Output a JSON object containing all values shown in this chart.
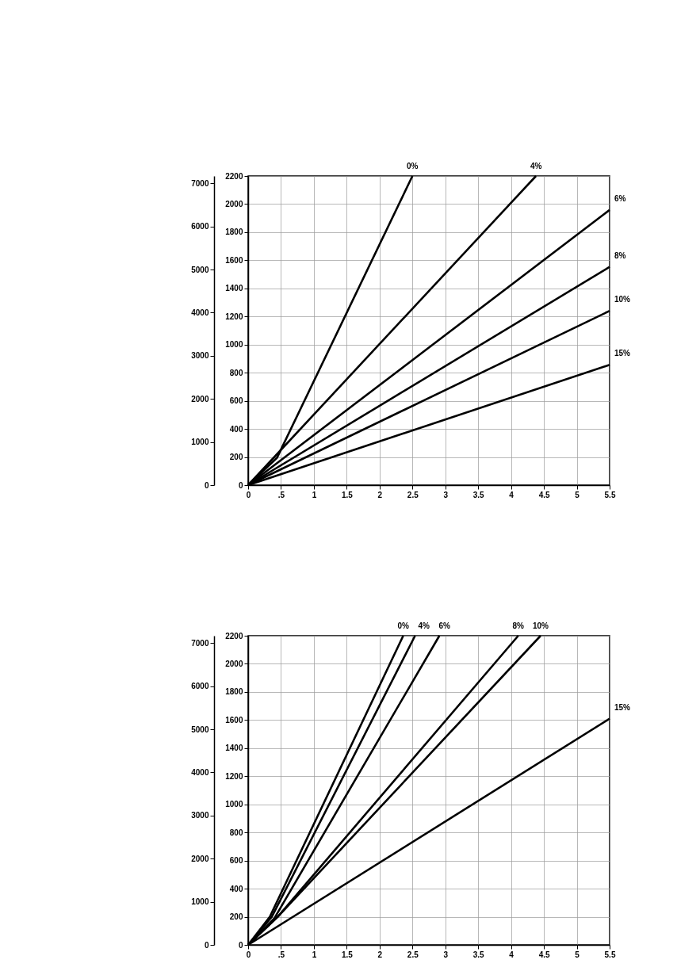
{
  "chart_data": [
    {
      "type": "line",
      "xlim": [
        0,
        5.5
      ],
      "xticks": [
        0,
        {
          "value": 0.5,
          "label": ".5"
        },
        1,
        1.5,
        2,
        2.5,
        3,
        3.5,
        4,
        4.5,
        5,
        5.5
      ],
      "ylim": [
        0,
        2200
      ],
      "yticks": [
        0,
        200,
        400,
        600,
        800,
        1000,
        1200,
        1400,
        1600,
        1800,
        2000,
        2200
      ],
      "y2lim": [
        0,
        7170
      ],
      "y2ticks": [
        0,
        1000,
        2000,
        3000,
        4000,
        5000,
        6000,
        7000
      ],
      "grid": true,
      "series": [
        {
          "name": "0%",
          "color": "#000000",
          "x": [
            0,
            0.44,
            2.5
          ],
          "values": [
            0,
            195,
            2200
          ]
        },
        {
          "name": "4%",
          "color": "#000000",
          "x": [
            0,
            4.38
          ],
          "values": [
            0,
            2200
          ]
        },
        {
          "name": "6%",
          "color": "#000000",
          "x": [
            0,
            5.5
          ],
          "values": [
            0,
            1958
          ]
        },
        {
          "name": "8%",
          "color": "#000000",
          "x": [
            0,
            5.5
          ],
          "values": [
            0,
            1553
          ]
        },
        {
          "name": "10%",
          "color": "#000000",
          "x": [
            0,
            5.5
          ],
          "values": [
            0,
            1240
          ]
        },
        {
          "name": "15%",
          "color": "#000000",
          "x": [
            0,
            5.5
          ],
          "values": [
            0,
            856
          ]
        }
      ]
    },
    {
      "type": "line",
      "xlim": [
        0,
        5.5
      ],
      "xticks": [
        0,
        {
          "value": 0.5,
          "label": ".5"
        },
        1,
        1.5,
        2,
        2.5,
        3,
        3.5,
        4,
        4.5,
        5,
        5.5
      ],
      "ylim": [
        0,
        2200
      ],
      "yticks": [
        0,
        200,
        400,
        600,
        800,
        1000,
        1200,
        1400,
        1600,
        1800,
        2000,
        2200
      ],
      "y2lim": [
        0,
        7170
      ],
      "y2ticks": [
        0,
        1000,
        2000,
        3000,
        4000,
        5000,
        6000,
        7000
      ],
      "grid": true,
      "series": [
        {
          "name": "0%",
          "color": "#000000",
          "x": [
            0,
            0.33,
            2.36
          ],
          "values": [
            0,
            200,
            2200
          ]
        },
        {
          "name": "4%",
          "color": "#000000",
          "x": [
            0,
            0.36,
            2.54
          ],
          "values": [
            0,
            200,
            2200
          ]
        },
        {
          "name": "6%",
          "color": "#000000",
          "x": [
            0,
            0.4,
            2.91
          ],
          "values": [
            0,
            190,
            2200
          ]
        },
        {
          "name": "8%",
          "color": "#000000",
          "x": [
            0,
            0.45,
            4.11
          ],
          "values": [
            0,
            200,
            2200
          ]
        },
        {
          "name": "10%",
          "color": "#000000",
          "x": [
            0,
            0.45,
            4.45
          ],
          "values": [
            0,
            200,
            2200
          ]
        },
        {
          "name": "15%",
          "color": "#000000",
          "x": [
            0,
            5.5
          ],
          "values": [
            0,
            1610
          ]
        }
      ]
    }
  ]
}
